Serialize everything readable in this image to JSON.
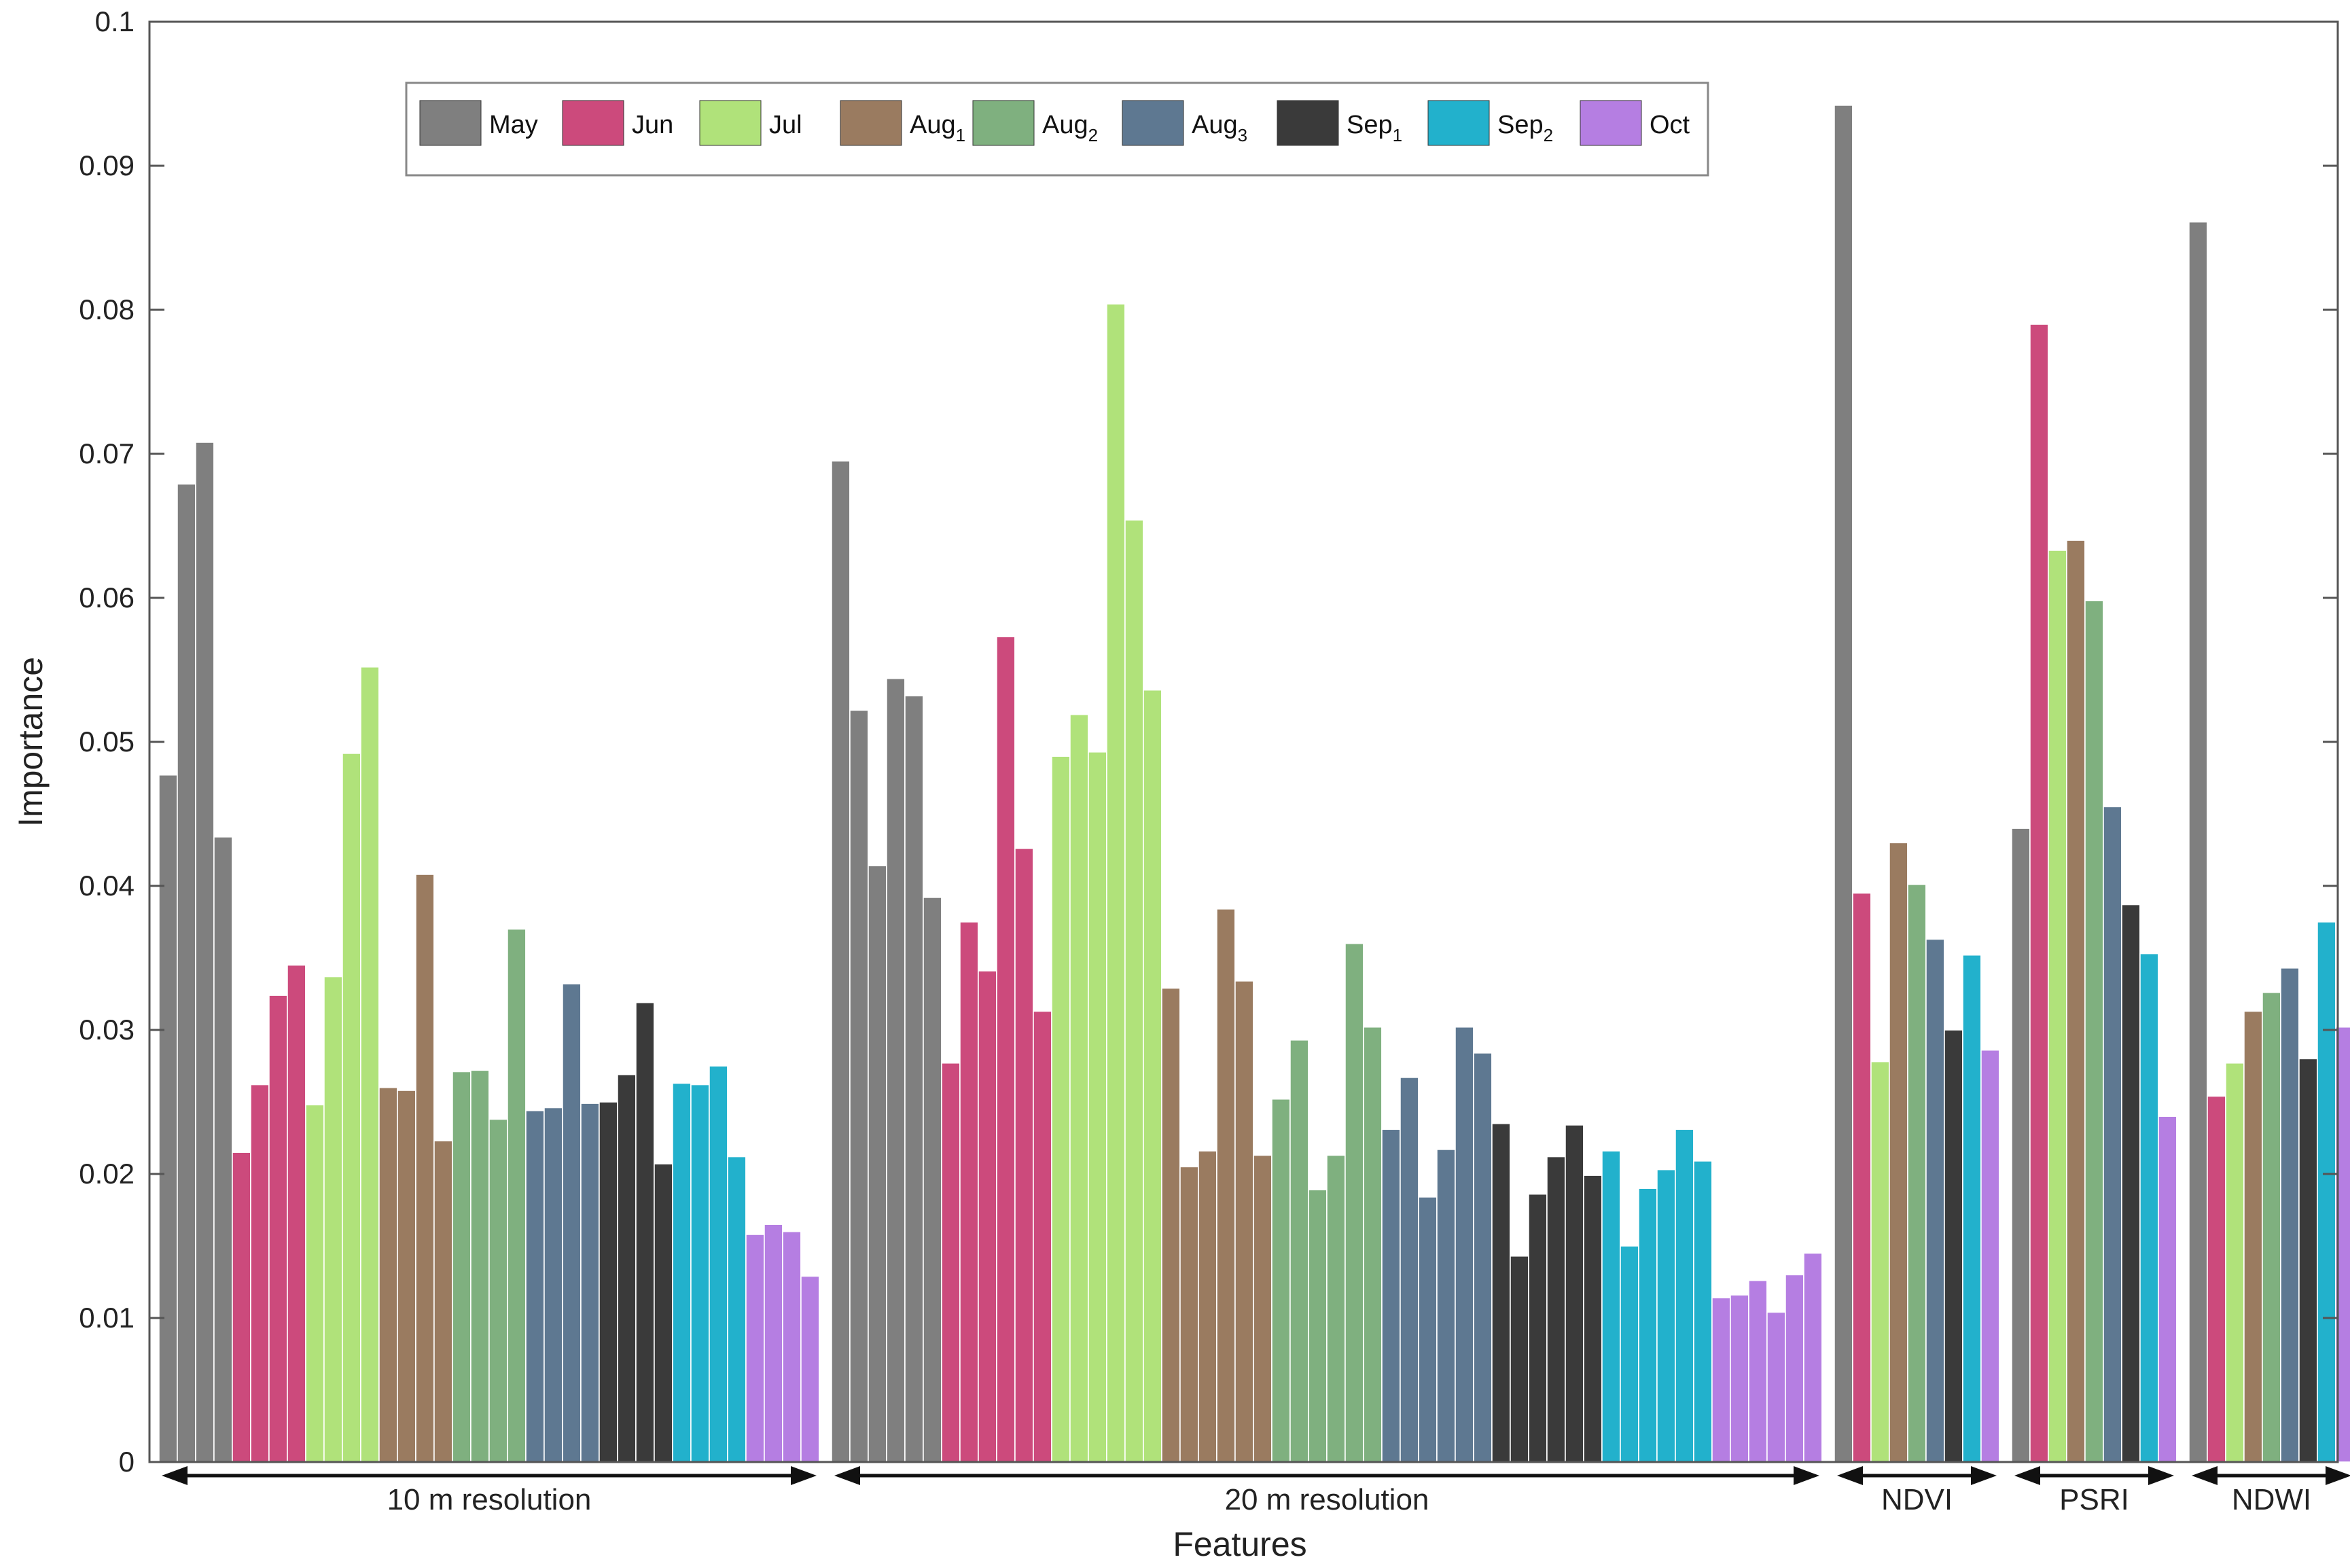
{
  "chart_data": {
    "type": "bar",
    "title": "",
    "xlabel": "Features",
    "ylabel": "Importance",
    "ylim": [
      0,
      0.1
    ],
    "yticks": [
      {
        "value": 0,
        "label": "0"
      },
      {
        "value": 0.01,
        "label": "0.01"
      },
      {
        "value": 0.02,
        "label": "0.02"
      },
      {
        "value": 0.03,
        "label": "0.03"
      },
      {
        "value": 0.04,
        "label": "0.04"
      },
      {
        "value": 0.05,
        "label": "0.05"
      },
      {
        "value": 0.06,
        "label": "0.06"
      },
      {
        "value": 0.07,
        "label": "0.07"
      },
      {
        "value": 0.08,
        "label": "0.08"
      },
      {
        "value": 0.09,
        "label": "0.09"
      },
      {
        "value": 0.1,
        "label": "0.1"
      }
    ],
    "grid": false,
    "legend_position": "top",
    "months": [
      {
        "key": "May",
        "label": "May",
        "sub": "",
        "color": "#7f7f7f"
      },
      {
        "key": "Jun",
        "label": "Jun",
        "sub": "",
        "color": "#cc4a7c"
      },
      {
        "key": "Jul",
        "label": "Jul",
        "sub": "",
        "color": "#b0e27a"
      },
      {
        "key": "Aug1",
        "label": "Aug",
        "sub": "1",
        "color": "#9a7b60"
      },
      {
        "key": "Aug2",
        "label": "Aug",
        "sub": "2",
        "color": "#7fb07f"
      },
      {
        "key": "Aug3",
        "label": "Aug",
        "sub": "3",
        "color": "#5e7891"
      },
      {
        "key": "Sep1",
        "label": "Sep",
        "sub": "1",
        "color": "#3a3a3a"
      },
      {
        "key": "Sep2",
        "label": "Sep",
        "sub": "2",
        "color": "#22b1cc"
      },
      {
        "key": "Oct",
        "label": "Oct",
        "sub": "",
        "color": "#b57ee2"
      }
    ],
    "groups": [
      {
        "label": "10 m resolution",
        "series": [
          {
            "month": "May",
            "values": [
              0.0477,
              0.0679,
              0.0708,
              0.0434
            ]
          },
          {
            "month": "Jun",
            "values": [
              0.0215,
              0.0262,
              0.0324,
              0.0345
            ]
          },
          {
            "month": "Jul",
            "values": [
              0.0248,
              0.0337,
              0.0492,
              0.0552
            ]
          },
          {
            "month": "Aug1",
            "values": [
              0.026,
              0.0258,
              0.0408,
              0.0223
            ]
          },
          {
            "month": "Aug2",
            "values": [
              0.0271,
              0.0272,
              0.0238,
              0.037
            ]
          },
          {
            "month": "Aug3",
            "values": [
              0.0244,
              0.0246,
              0.0332,
              0.0249
            ]
          },
          {
            "month": "Sep1",
            "values": [
              0.025,
              0.0269,
              0.0319,
              0.0207
            ]
          },
          {
            "month": "Sep2",
            "values": [
              0.0263,
              0.0262,
              0.0275,
              0.0212
            ]
          },
          {
            "month": "Oct",
            "values": [
              0.0158,
              0.0165,
              0.016,
              0.0129
            ]
          }
        ]
      },
      {
        "label": "20 m resolution",
        "series": [
          {
            "month": "May",
            "values": [
              0.0695,
              0.0522,
              0.0414,
              0.0544,
              0.0532,
              0.0392
            ]
          },
          {
            "month": "Jun",
            "values": [
              0.0277,
              0.0375,
              0.0341,
              0.0573,
              0.0426,
              0.0313
            ]
          },
          {
            "month": "Jul",
            "values": [
              0.049,
              0.0519,
              0.0493,
              0.0804,
              0.0654,
              0.0536
            ]
          },
          {
            "month": "Aug1",
            "values": [
              0.0329,
              0.0205,
              0.0216,
              0.0384,
              0.0334,
              0.0213
            ]
          },
          {
            "month": "Aug2",
            "values": [
              0.0252,
              0.0293,
              0.0189,
              0.0213,
              0.036,
              0.0302
            ]
          },
          {
            "month": "Aug3",
            "values": [
              0.0231,
              0.0267,
              0.0184,
              0.0217,
              0.0302,
              0.0284
            ]
          },
          {
            "month": "Sep1",
            "values": [
              0.0235,
              0.0143,
              0.0186,
              0.0212,
              0.0234,
              0.0199
            ]
          },
          {
            "month": "Sep2",
            "values": [
              0.0216,
              0.015,
              0.019,
              0.0203,
              0.0231,
              0.0209
            ]
          },
          {
            "month": "Oct",
            "values": [
              0.0114,
              0.0116,
              0.0126,
              0.0104,
              0.013,
              0.0145
            ]
          }
        ]
      },
      {
        "label": "NDVI",
        "series": [
          {
            "month": "May",
            "values": [
              0.0942
            ]
          },
          {
            "month": "Jun",
            "values": [
              0.0395
            ]
          },
          {
            "month": "Jul",
            "values": [
              0.0278
            ]
          },
          {
            "month": "Aug1",
            "values": [
              0.043
            ]
          },
          {
            "month": "Aug2",
            "values": [
              0.0401
            ]
          },
          {
            "month": "Aug3",
            "values": [
              0.0363
            ]
          },
          {
            "month": "Sep1",
            "values": [
              0.03
            ]
          },
          {
            "month": "Sep2",
            "values": [
              0.0352
            ]
          },
          {
            "month": "Oct",
            "values": [
              0.0286
            ]
          }
        ]
      },
      {
        "label": "PSRI",
        "series": [
          {
            "month": "May",
            "values": [
              0.044
            ]
          },
          {
            "month": "Jun",
            "values": [
              0.079
            ]
          },
          {
            "month": "Jul",
            "values": [
              0.0633
            ]
          },
          {
            "month": "Aug1",
            "values": [
              0.064
            ]
          },
          {
            "month": "Aug2",
            "values": [
              0.0598
            ]
          },
          {
            "month": "Aug3",
            "values": [
              0.0455
            ]
          },
          {
            "month": "Sep1",
            "values": [
              0.0387
            ]
          },
          {
            "month": "Sep2",
            "values": [
              0.0353
            ]
          },
          {
            "month": "Oct",
            "values": [
              0.024
            ]
          }
        ]
      },
      {
        "label": "NDWI",
        "series": [
          {
            "month": "May",
            "values": [
              0.0861
            ]
          },
          {
            "month": "Jun",
            "values": [
              0.0254
            ]
          },
          {
            "month": "Jul",
            "values": [
              0.0277
            ]
          },
          {
            "month": "Aug1",
            "values": [
              0.0313
            ]
          },
          {
            "month": "Aug2",
            "values": [
              0.0326
            ]
          },
          {
            "month": "Aug3",
            "values": [
              0.0343
            ]
          },
          {
            "month": "Sep1",
            "values": [
              0.028
            ]
          },
          {
            "month": "Sep2",
            "values": [
              0.0375
            ]
          },
          {
            "month": "Oct",
            "values": [
              0.0302
            ]
          }
        ]
      }
    ]
  }
}
